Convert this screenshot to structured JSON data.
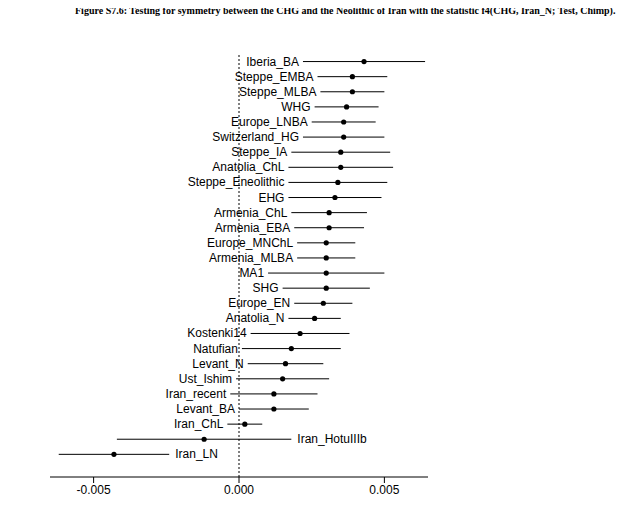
{
  "chart_data": {
    "type": "scatter",
    "orientation": "horizontal",
    "title": "Figure S7.6: Testing for symmetry between the CHG and the Neolithic of Iran with the statistic f4(CHG, Iran_N; Test, Chimp).",
    "categories": [
      "Iberia_BA",
      "Steppe_EMBA",
      "Steppe_MLBA",
      "WHG",
      "Europe_LNBA",
      "Switzerland_HG",
      "Steppe_IA",
      "Anatolia_ChL",
      "Steppe_Eneolithic",
      "EHG",
      "Armenia_ChL",
      "Armenia_EBA",
      "Europe_MNChL",
      "Armenia_MLBA",
      "MA1",
      "SHG",
      "Europe_EN",
      "Anatolia_N",
      "Kostenki14",
      "Natufian",
      "Levant_N",
      "Ust_Ishim",
      "Iran_recent",
      "Levant_BA",
      "Iran_ChL",
      "Iran_HotuIIIb",
      "Iran_LN"
    ],
    "values": [
      0.0043,
      0.0039,
      0.0039,
      0.0037,
      0.0036,
      0.0036,
      0.0035,
      0.0035,
      0.0034,
      0.0033,
      0.0031,
      0.0031,
      0.003,
      0.003,
      0.003,
      0.003,
      0.0029,
      0.0026,
      0.0021,
      0.0018,
      0.0016,
      0.0015,
      0.0012,
      0.0012,
      0.0002,
      -0.0012,
      -0.0043
    ],
    "errors": [
      0.0021,
      0.0012,
      0.0011,
      0.0011,
      0.0011,
      0.0014,
      0.0017,
      0.0018,
      0.0017,
      0.0016,
      0.0013,
      0.0012,
      0.001,
      0.001,
      0.002,
      0.0015,
      0.001,
      0.0009,
      0.0017,
      0.0017,
      0.0013,
      0.0016,
      0.0015,
      0.0012,
      0.0006,
      0.003,
      0.0019
    ],
    "xlim": [
      -0.0065,
      0.0065
    ],
    "xticks": [
      {
        "value": -0.005,
        "label": "-0.005"
      },
      {
        "value": 0,
        "label": "0.000"
      },
      {
        "value": 0.005,
        "label": "0.005"
      }
    ],
    "reference_x": 0,
    "color": "#000000",
    "marker": "circle",
    "tick_labels": "x"
  }
}
